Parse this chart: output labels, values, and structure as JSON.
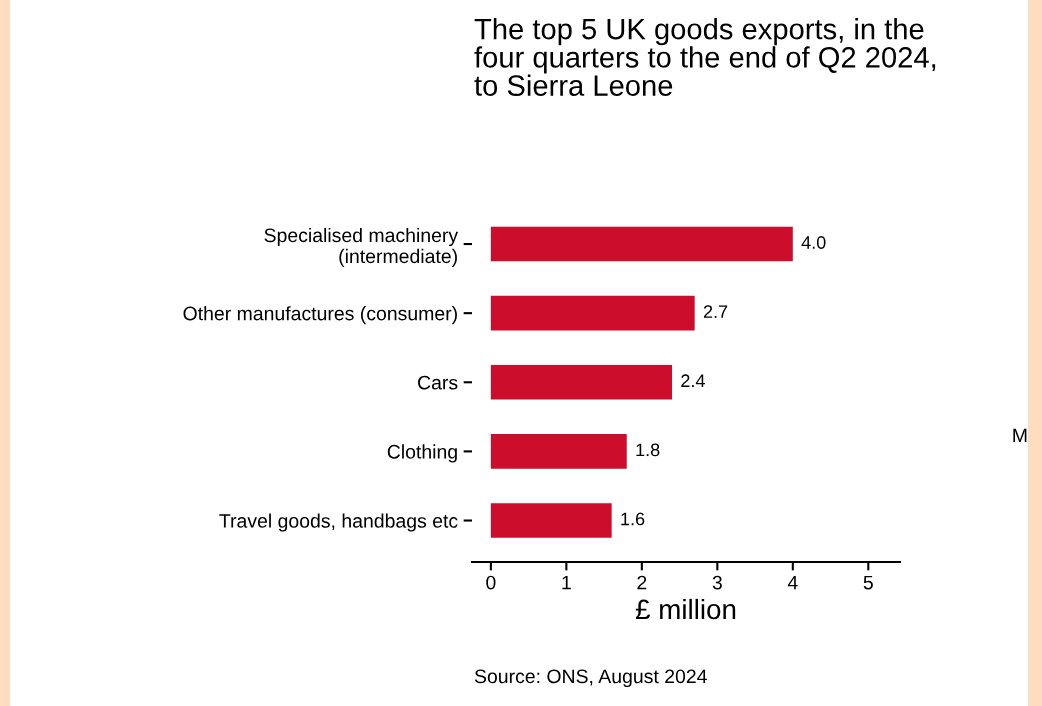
{
  "chart_data": {
    "type": "bar",
    "orientation": "horizontal",
    "title": "The top 5 UK goods exports, in the four quarters to the end of Q2 2024, to Sierra Leone",
    "categories": [
      "Specialised machinery\n(intermediate)",
      "Other manufactures (consumer)",
      "Cars",
      "Clothing",
      "Travel goods, handbags etc"
    ],
    "values": [
      4.0,
      2.7,
      2.4,
      1.8,
      1.6
    ],
    "color": "#cc0e2c",
    "value_labels": [
      "4.0",
      "2.7",
      "2.4",
      "1.8",
      "1.6"
    ],
    "xlabel": "£ million",
    "xlim": [
      -0.25,
      5.42
    ],
    "xticks": [
      0,
      1,
      2,
      3,
      4,
      5
    ],
    "grid": false,
    "annotations": [
      "Source: ONS, August 2024",
      "M"
    ]
  }
}
